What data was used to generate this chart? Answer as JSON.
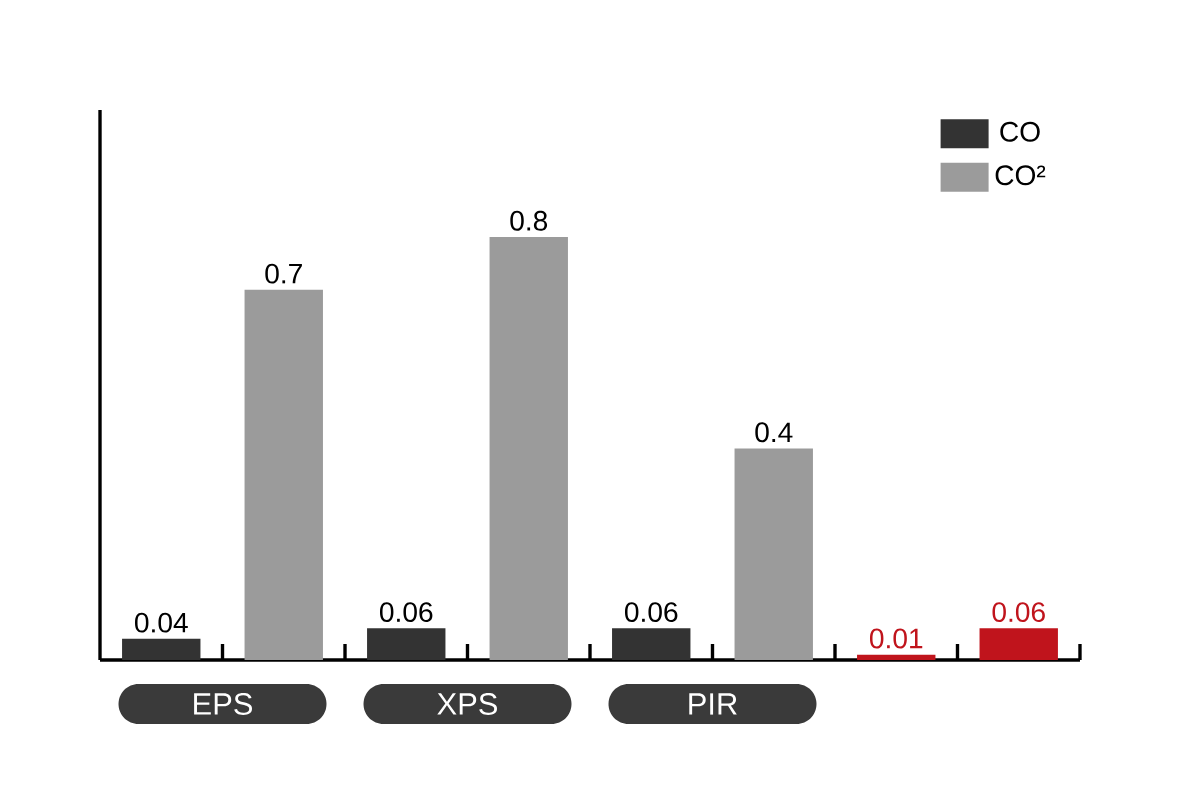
{
  "chart_data": {
    "type": "bar",
    "categories": [
      "EPS",
      "XPS",
      "PIR",
      null
    ],
    "series": [
      {
        "name": "CO",
        "color": "#333333",
        "colors": [
          "#333333",
          "#333333",
          "#333333",
          "#c0141c"
        ],
        "values": [
          0.04,
          0.06,
          0.06,
          0.01
        ]
      },
      {
        "name": "CO²",
        "color": "#9b9b9b",
        "colors": [
          "#9b9b9b",
          "#9b9b9b",
          "#9b9b9b",
          "#c0141c"
        ],
        "values": [
          0.7,
          0.8,
          0.4,
          0.06
        ]
      }
    ],
    "data_labels": true,
    "legend": "top right"
  }
}
